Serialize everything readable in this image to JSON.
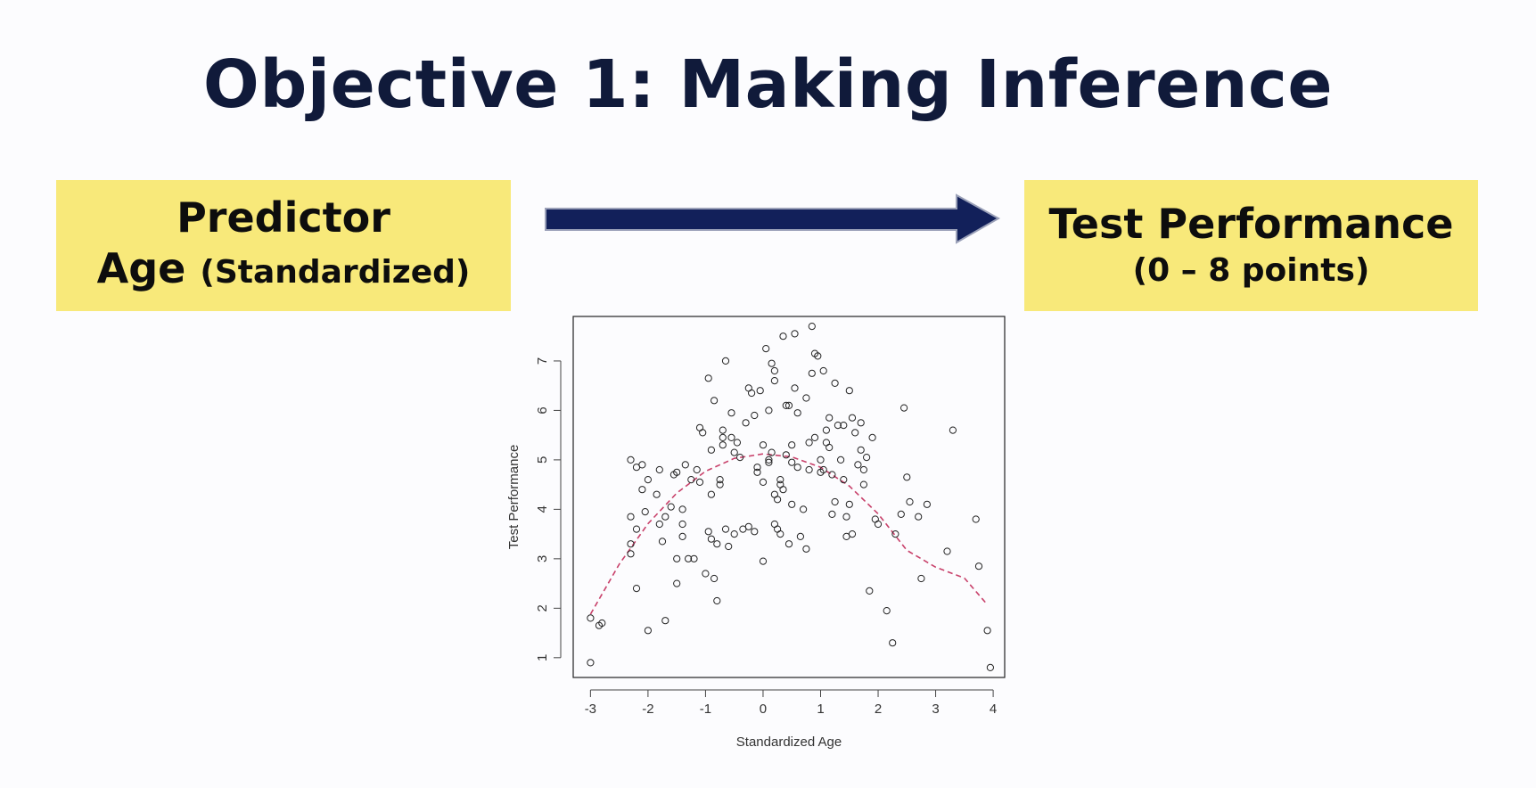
{
  "slide": {
    "title": "Objective 1: Making Inference",
    "predictor_box": {
      "line1": "Predictor",
      "line2_main": "Age",
      "line2_paren": "(Standardized)"
    },
    "outcome_box": {
      "line1": "Test Performance",
      "line2": "(0 – 8 points)"
    },
    "colors": {
      "title": "#101a3a",
      "box_fill": "#f8e97a",
      "arrow": "#12205a",
      "curve": "#c8406a"
    }
  },
  "chart_data": {
    "type": "scatter",
    "xlabel": "Standardized Age",
    "ylabel": "Test Performance",
    "xlim": [
      -3.3,
      4.2
    ],
    "ylim": [
      0.6,
      7.9
    ],
    "xticks": [
      -3,
      -2,
      -1,
      0,
      1,
      2,
      3,
      4
    ],
    "yticks": [
      1,
      2,
      3,
      4,
      5,
      6,
      7
    ],
    "xtick_labels": [
      "-3",
      "-2",
      "-1",
      "0",
      "1",
      "2",
      "3",
      "4"
    ],
    "ytick_labels": [
      "1",
      "2",
      "3",
      "4",
      "5",
      "6",
      "7"
    ],
    "grid": false,
    "fit_curve": {
      "style": "dashed",
      "color": "#c8406a",
      "x": [
        -3.0,
        -2.5,
        -2.0,
        -1.5,
        -1.0,
        -0.5,
        0.0,
        0.5,
        1.0,
        1.5,
        2.0,
        2.5,
        3.0,
        3.5,
        3.9
      ],
      "y": [
        1.88,
        2.89,
        3.71,
        4.33,
        4.77,
        5.03,
        5.12,
        5.06,
        4.85,
        4.47,
        3.91,
        3.17,
        2.83,
        2.61,
        2.07
      ]
    },
    "points": [
      [
        -3.0,
        0.9
      ],
      [
        -3.0,
        1.8
      ],
      [
        -2.85,
        1.65
      ],
      [
        -2.8,
        1.7
      ],
      [
        -2.3,
        3.1
      ],
      [
        -2.3,
        3.3
      ],
      [
        -2.3,
        3.85
      ],
      [
        -2.3,
        5.0
      ],
      [
        -2.2,
        3.6
      ],
      [
        -2.2,
        4.85
      ],
      [
        -2.2,
        2.4
      ],
      [
        -2.1,
        4.4
      ],
      [
        -2.1,
        4.9
      ],
      [
        -2.05,
        3.95
      ],
      [
        -2.0,
        4.6
      ],
      [
        -2.0,
        1.55
      ],
      [
        -1.85,
        4.3
      ],
      [
        -1.8,
        4.8
      ],
      [
        -1.8,
        3.7
      ],
      [
        -1.75,
        3.35
      ],
      [
        -1.7,
        1.75
      ],
      [
        -1.7,
        3.85
      ],
      [
        -1.6,
        4.05
      ],
      [
        -1.55,
        4.7
      ],
      [
        -1.5,
        4.75
      ],
      [
        -1.5,
        2.5
      ],
      [
        -1.5,
        3.0
      ],
      [
        -1.4,
        4.0
      ],
      [
        -1.4,
        3.7
      ],
      [
        -1.4,
        3.45
      ],
      [
        -1.35,
        4.9
      ],
      [
        -1.3,
        3.0
      ],
      [
        -1.25,
        4.6
      ],
      [
        -1.2,
        3.0
      ],
      [
        -1.15,
        4.8
      ],
      [
        -1.1,
        4.55
      ],
      [
        -1.1,
        5.65
      ],
      [
        -1.05,
        5.55
      ],
      [
        -1.0,
        2.7
      ],
      [
        -0.95,
        3.55
      ],
      [
        -0.95,
        6.65
      ],
      [
        -0.9,
        3.4
      ],
      [
        -0.9,
        4.3
      ],
      [
        -0.9,
        5.2
      ],
      [
        -0.85,
        6.2
      ],
      [
        -0.85,
        2.6
      ],
      [
        -0.8,
        3.3
      ],
      [
        -0.8,
        2.15
      ],
      [
        -0.75,
        4.6
      ],
      [
        -0.75,
        4.5
      ],
      [
        -0.7,
        5.6
      ],
      [
        -0.7,
        5.45
      ],
      [
        -0.7,
        5.3
      ],
      [
        -0.65,
        7.0
      ],
      [
        -0.65,
        3.6
      ],
      [
        -0.6,
        3.25
      ],
      [
        -0.55,
        5.95
      ],
      [
        -0.55,
        5.45
      ],
      [
        -0.5,
        3.5
      ],
      [
        -0.5,
        5.15
      ],
      [
        -0.45,
        5.35
      ],
      [
        -0.4,
        5.05
      ],
      [
        -0.35,
        3.6
      ],
      [
        -0.3,
        5.75
      ],
      [
        -0.25,
        6.45
      ],
      [
        -0.25,
        3.65
      ],
      [
        -0.2,
        6.35
      ],
      [
        -0.15,
        5.9
      ],
      [
        -0.15,
        3.55
      ],
      [
        -0.1,
        4.85
      ],
      [
        -0.1,
        4.75
      ],
      [
        -0.05,
        6.4
      ],
      [
        0.0,
        4.55
      ],
      [
        0.0,
        5.3
      ],
      [
        0.0,
        2.95
      ],
      [
        0.05,
        7.25
      ],
      [
        0.1,
        4.95
      ],
      [
        0.1,
        5.0
      ],
      [
        0.1,
        6.0
      ],
      [
        0.15,
        6.95
      ],
      [
        0.15,
        5.15
      ],
      [
        0.2,
        6.8
      ],
      [
        0.2,
        6.6
      ],
      [
        0.2,
        4.3
      ],
      [
        0.2,
        3.7
      ],
      [
        0.25,
        4.2
      ],
      [
        0.25,
        3.6
      ],
      [
        0.3,
        4.6
      ],
      [
        0.3,
        4.5
      ],
      [
        0.3,
        3.5
      ],
      [
        0.35,
        7.5
      ],
      [
        0.35,
        4.4
      ],
      [
        0.4,
        6.1
      ],
      [
        0.4,
        5.1
      ],
      [
        0.45,
        6.1
      ],
      [
        0.45,
        3.3
      ],
      [
        0.5,
        5.3
      ],
      [
        0.5,
        4.95
      ],
      [
        0.5,
        4.1
      ],
      [
        0.55,
        6.45
      ],
      [
        0.55,
        7.55
      ],
      [
        0.6,
        5.95
      ],
      [
        0.6,
        4.85
      ],
      [
        0.65,
        3.45
      ],
      [
        0.7,
        4.0
      ],
      [
        0.75,
        6.25
      ],
      [
        0.75,
        3.2
      ],
      [
        0.8,
        5.35
      ],
      [
        0.8,
        4.8
      ],
      [
        0.85,
        7.7
      ],
      [
        0.85,
        6.75
      ],
      [
        0.9,
        7.15
      ],
      [
        0.9,
        5.45
      ],
      [
        0.95,
        7.1
      ],
      [
        1.0,
        5.0
      ],
      [
        1.0,
        4.75
      ],
      [
        1.05,
        6.8
      ],
      [
        1.05,
        4.8
      ],
      [
        1.1,
        5.6
      ],
      [
        1.1,
        5.35
      ],
      [
        1.15,
        5.85
      ],
      [
        1.15,
        5.25
      ],
      [
        1.2,
        4.7
      ],
      [
        1.2,
        3.9
      ],
      [
        1.25,
        6.55
      ],
      [
        1.25,
        4.15
      ],
      [
        1.3,
        5.7
      ],
      [
        1.35,
        5.0
      ],
      [
        1.4,
        5.7
      ],
      [
        1.4,
        4.6
      ],
      [
        1.45,
        3.85
      ],
      [
        1.45,
        3.45
      ],
      [
        1.5,
        6.4
      ],
      [
        1.5,
        4.1
      ],
      [
        1.55,
        5.85
      ],
      [
        1.55,
        3.5
      ],
      [
        1.6,
        5.55
      ],
      [
        1.65,
        4.9
      ],
      [
        1.7,
        5.75
      ],
      [
        1.7,
        5.2
      ],
      [
        1.75,
        4.5
      ],
      [
        1.75,
        4.8
      ],
      [
        1.8,
        5.05
      ],
      [
        1.85,
        2.35
      ],
      [
        1.9,
        5.45
      ],
      [
        1.95,
        3.8
      ],
      [
        2.0,
        3.7
      ],
      [
        2.15,
        1.95
      ],
      [
        2.25,
        1.3
      ],
      [
        2.3,
        3.5
      ],
      [
        2.4,
        3.9
      ],
      [
        2.45,
        6.05
      ],
      [
        2.5,
        4.65
      ],
      [
        2.55,
        4.15
      ],
      [
        2.7,
        3.85
      ],
      [
        2.75,
        2.6
      ],
      [
        2.85,
        4.1
      ],
      [
        3.2,
        3.15
      ],
      [
        3.3,
        5.6
      ],
      [
        3.7,
        3.8
      ],
      [
        3.75,
        2.85
      ],
      [
        3.9,
        1.55
      ],
      [
        3.95,
        0.8
      ]
    ]
  }
}
